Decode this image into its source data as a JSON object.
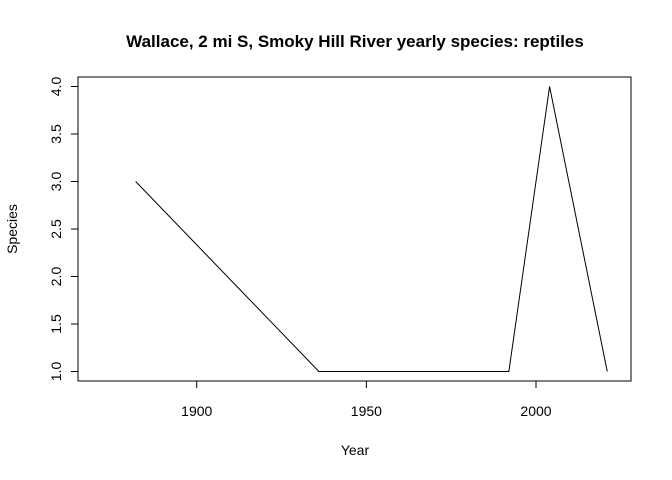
{
  "chart_data": {
    "type": "line",
    "title": "Wallace, 2 mi S, Smoky Hill River yearly species: reptiles",
    "xlabel": "Year",
    "ylabel": "Species",
    "xlim": [
      1865,
      2028
    ],
    "ylim": [
      0.9,
      4.1
    ],
    "x_ticks": [
      1900,
      1950,
      2000
    ],
    "x_tick_labels": [
      "1900",
      "1950",
      "2000"
    ],
    "y_ticks": [
      1.0,
      1.5,
      2.0,
      2.5,
      3.0,
      3.5,
      4.0
    ],
    "y_tick_labels": [
      "1.0",
      "1.5",
      "2.0",
      "2.5",
      "3.0",
      "3.5",
      "4.0"
    ],
    "grid": false,
    "series": [
      {
        "x": [
          1882,
          1936,
          1992,
          2004,
          2021
        ],
        "y": [
          3,
          1,
          1,
          4,
          1
        ],
        "color": "#000000"
      }
    ]
  }
}
